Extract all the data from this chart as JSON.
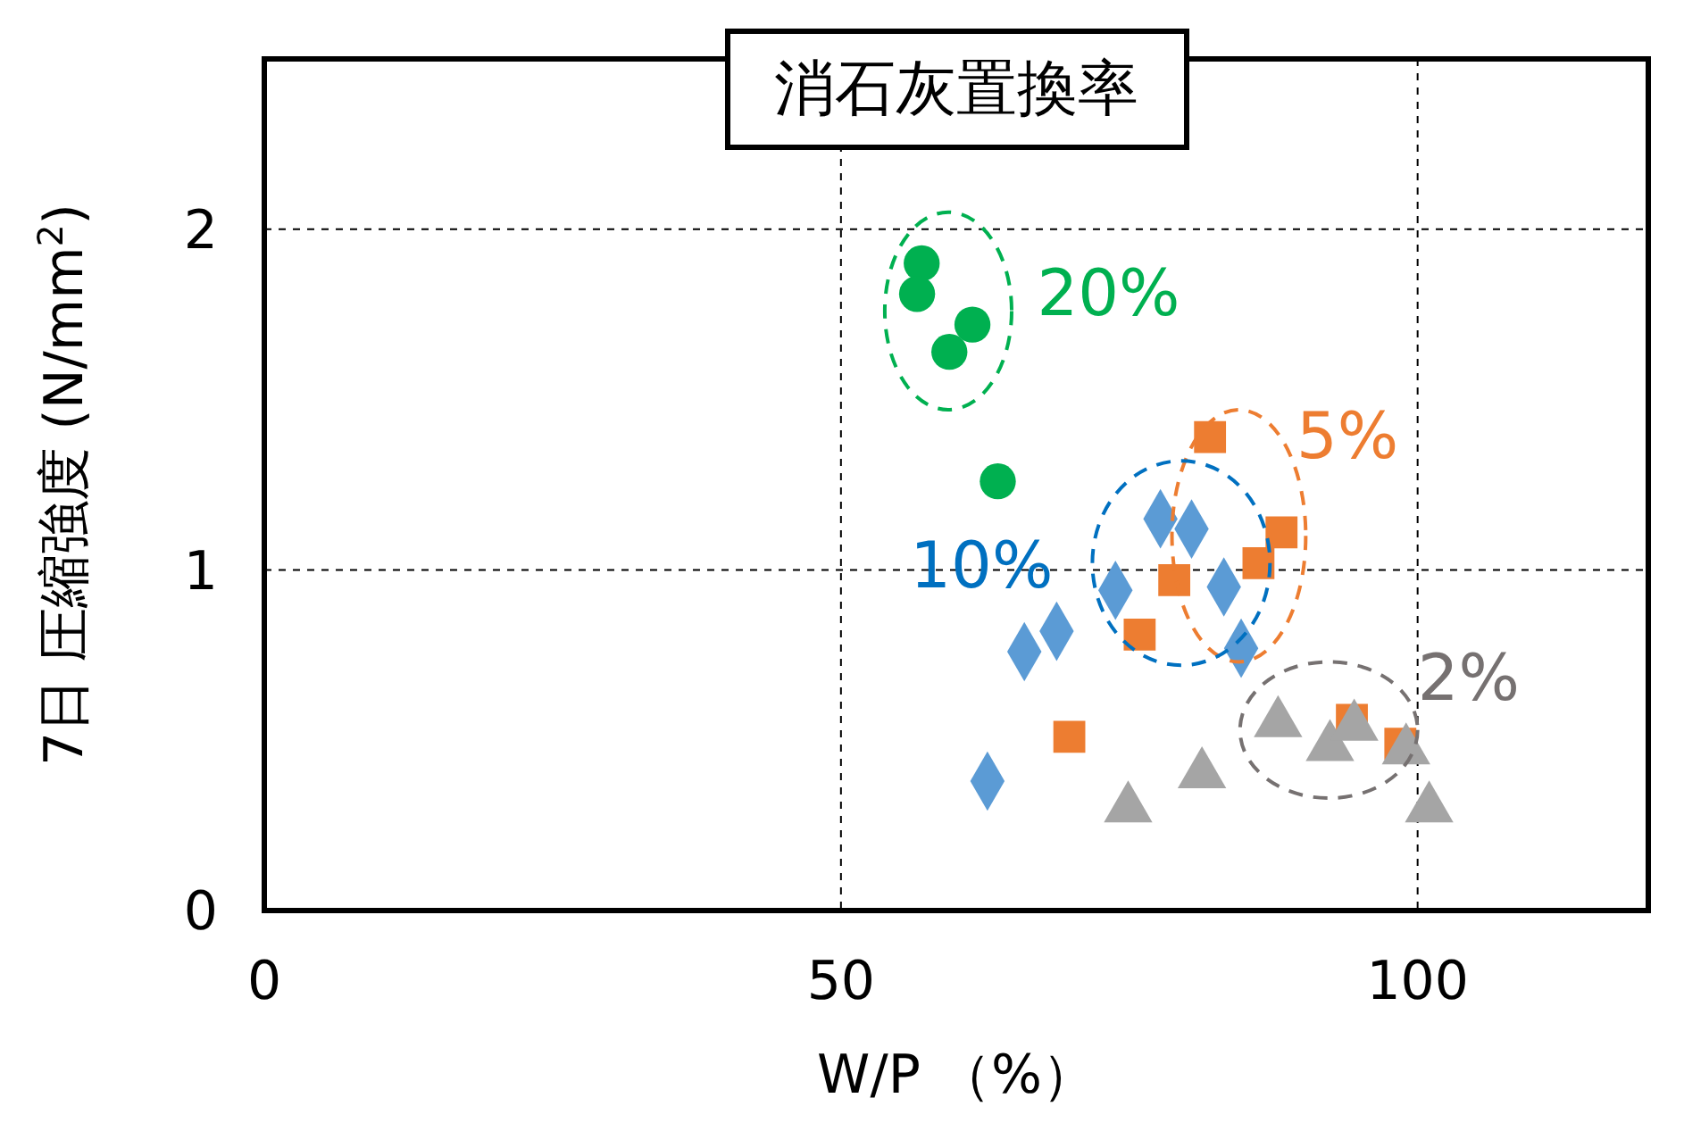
{
  "chart_data": {
    "type": "scatter",
    "title": "消石灰置換率",
    "xlabel": "W/P （%）",
    "ylabel": "7日 圧縮強度 (N/mm$^{2}$)",
    "xlim": [
      0,
      120
    ],
    "ylim": [
      0,
      2.5
    ],
    "xticks": [
      0,
      50,
      100
    ],
    "yticks": [
      0,
      1,
      2
    ],
    "grid": true,
    "legend": false,
    "series": [
      {
        "name": "20%",
        "color": "#00b050",
        "marker": "circle",
        "x": [
          57.0,
          56.6,
          61.4,
          59.4,
          63.6
        ],
        "values": [
          1.9,
          1.81,
          1.72,
          1.64,
          1.26
        ]
      },
      {
        "name": "5%",
        "color": "#ed7d31",
        "marker": "square",
        "x": [
          82.0,
          88.2,
          86.2,
          78.9,
          75.9,
          69.8,
          94.3,
          98.5
        ],
        "values": [
          1.39,
          1.11,
          1.02,
          0.97,
          0.81,
          0.51,
          0.56,
          0.49
        ]
      },
      {
        "name": "10%",
        "color": "#5b9bd5",
        "marker": "diamond",
        "x": [
          77.7,
          80.4,
          73.8,
          83.2,
          68.7,
          65.9,
          84.7,
          62.7
        ],
        "values": [
          1.15,
          1.12,
          0.94,
          0.95,
          0.82,
          0.76,
          0.77,
          0.38
        ]
      },
      {
        "name": "2%",
        "color": "#a5a5a5",
        "marker": "triangle",
        "x": [
          87.9,
          92.4,
          94.5,
          99.0,
          81.3,
          74.9,
          101.0
        ],
        "values": [
          0.55,
          0.48,
          0.54,
          0.47,
          0.4,
          0.3,
          0.3
        ]
      }
    ]
  }
}
